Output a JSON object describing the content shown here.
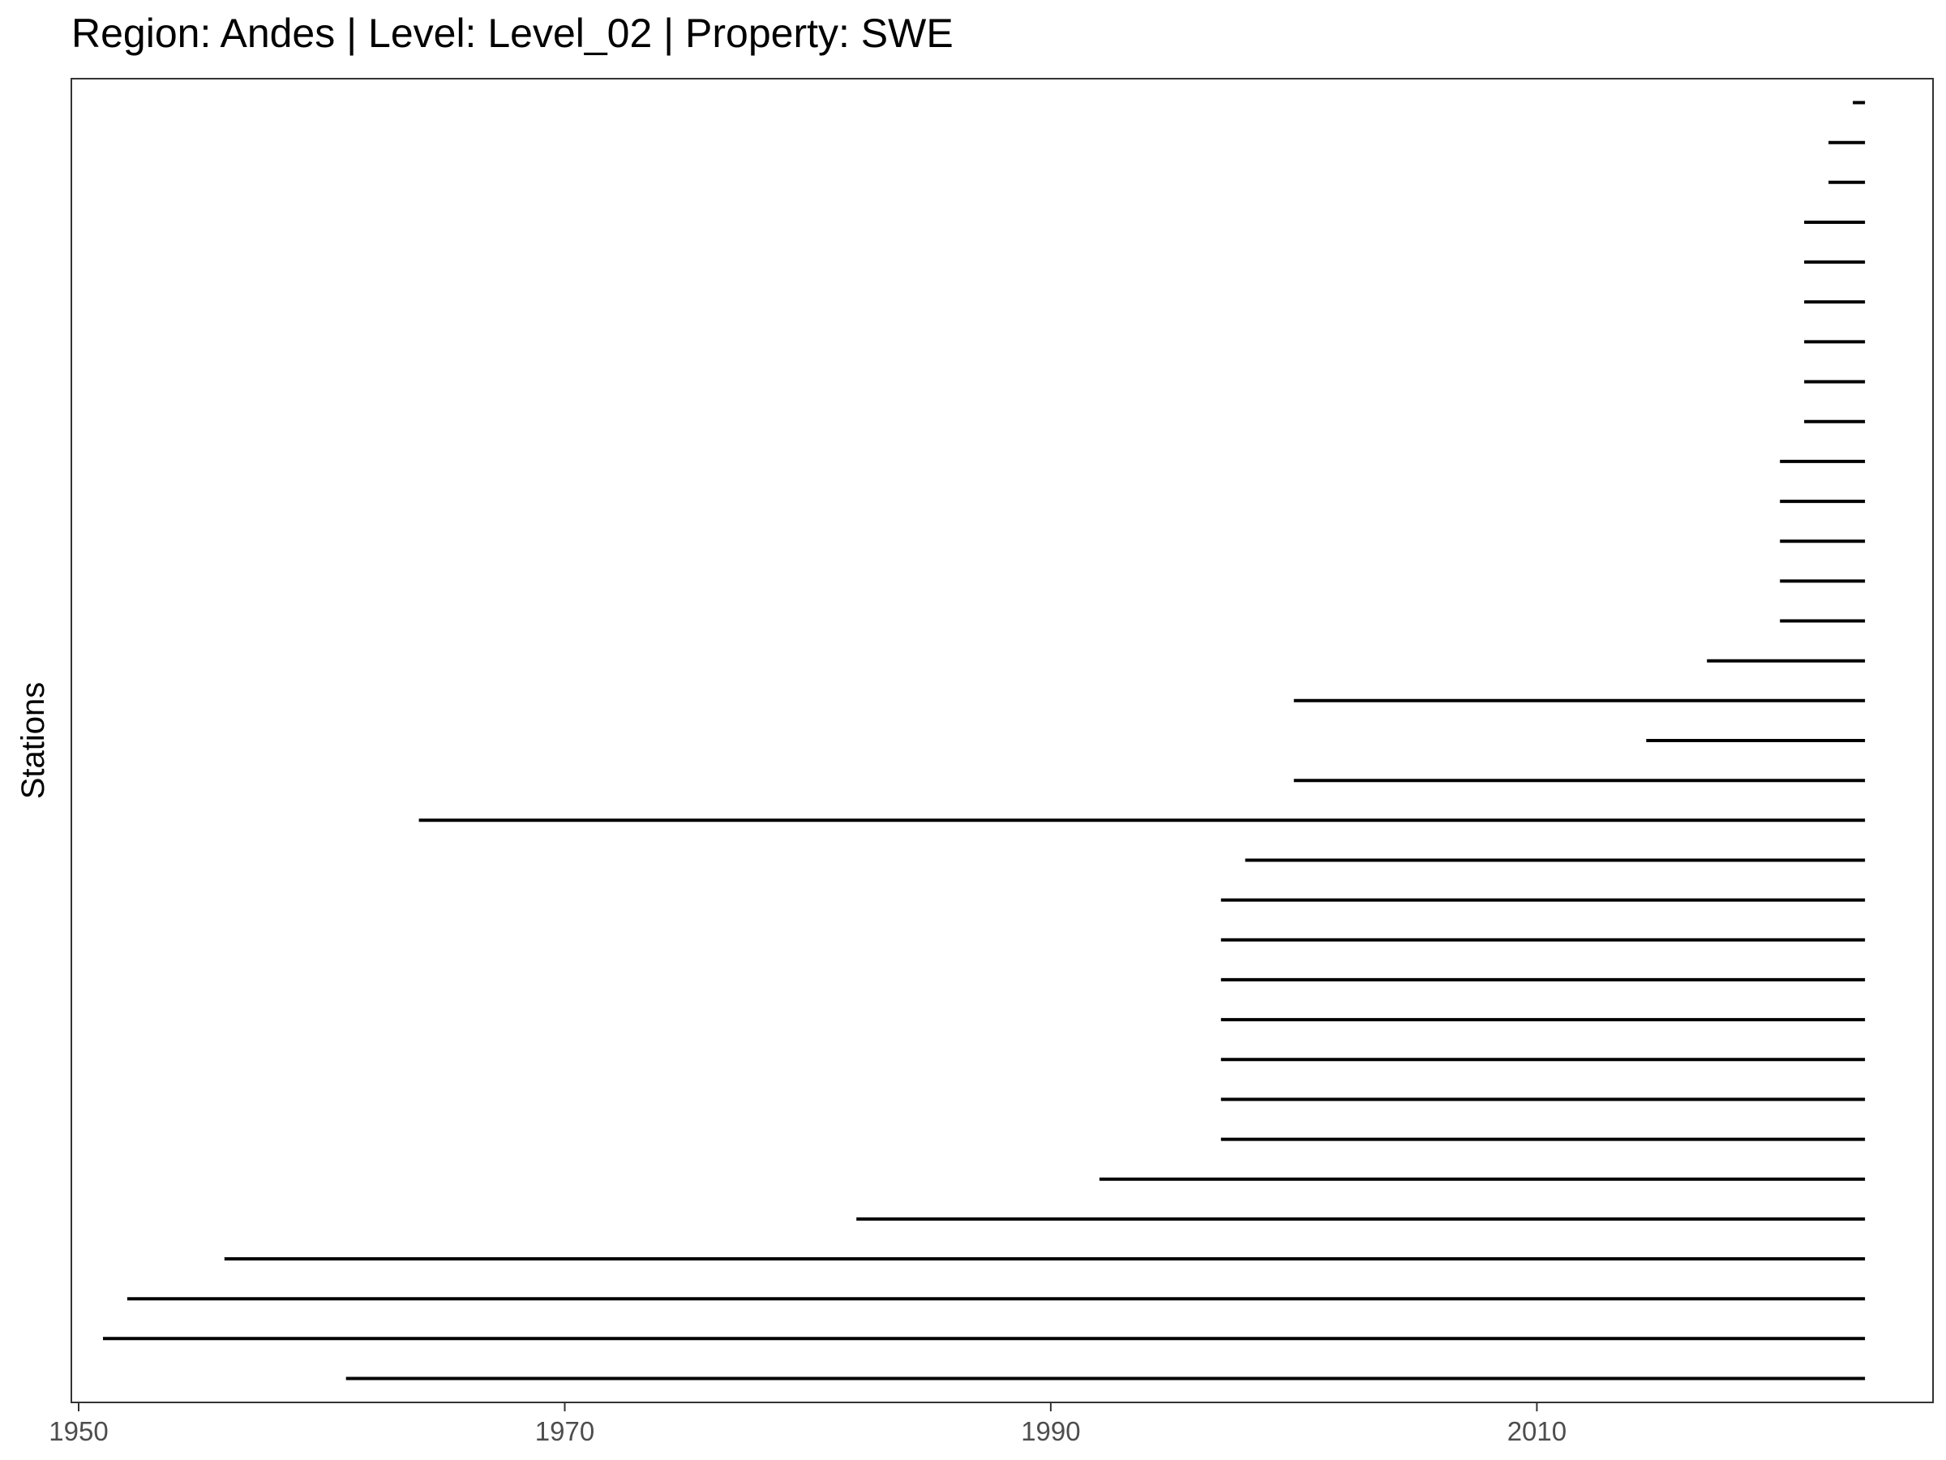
{
  "chart_data": {
    "type": "range-bar",
    "title": "Region: Andes | Level: Level_02 | Property: SWE",
    "xlabel": "",
    "ylabel": "Stations",
    "xlim": [
      1949.7,
      2026.3
    ],
    "x_ticks": [
      1950,
      1970,
      1990,
      2010
    ],
    "grid": false,
    "legend": "none",
    "colors": {
      "segment": "#000000",
      "frame": "#333333",
      "tick_text": "#4d4d4d",
      "background": "#ffffff"
    },
    "segments": [
      {
        "start": 1961.0,
        "end": 2023.5
      },
      {
        "start": 1951.0,
        "end": 2023.5
      },
      {
        "start": 1952.0,
        "end": 2023.5
      },
      {
        "start": 1956.0,
        "end": 2023.5
      },
      {
        "start": 1982.0,
        "end": 2023.5
      },
      {
        "start": 1992.0,
        "end": 2023.5
      },
      {
        "start": 1997.0,
        "end": 2023.5
      },
      {
        "start": 1997.0,
        "end": 2023.5
      },
      {
        "start": 1997.0,
        "end": 2023.5
      },
      {
        "start": 1997.0,
        "end": 2023.5
      },
      {
        "start": 1997.0,
        "end": 2023.5
      },
      {
        "start": 1997.0,
        "end": 2023.5
      },
      {
        "start": 1997.0,
        "end": 2023.5
      },
      {
        "start": 1998.0,
        "end": 2023.5
      },
      {
        "start": 1964.0,
        "end": 2023.5
      },
      {
        "start": 2000.0,
        "end": 2023.5
      },
      {
        "start": 2014.5,
        "end": 2023.5
      },
      {
        "start": 2000.0,
        "end": 2023.5
      },
      {
        "start": 2017.0,
        "end": 2023.5
      },
      {
        "start": 2020.0,
        "end": 2023.5
      },
      {
        "start": 2020.0,
        "end": 2023.5
      },
      {
        "start": 2020.0,
        "end": 2023.5
      },
      {
        "start": 2020.0,
        "end": 2023.5
      },
      {
        "start": 2020.0,
        "end": 2023.5
      },
      {
        "start": 2021.0,
        "end": 2023.5
      },
      {
        "start": 2021.0,
        "end": 2023.5
      },
      {
        "start": 2021.0,
        "end": 2023.5
      },
      {
        "start": 2021.0,
        "end": 2023.5
      },
      {
        "start": 2021.0,
        "end": 2023.5
      },
      {
        "start": 2021.0,
        "end": 2023.5
      },
      {
        "start": 2022.0,
        "end": 2023.5
      },
      {
        "start": 2022.0,
        "end": 2023.5
      },
      {
        "start": 2023.0,
        "end": 2023.5
      }
    ]
  }
}
